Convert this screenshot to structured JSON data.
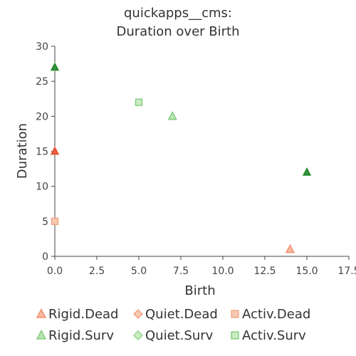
{
  "chart_data": {
    "type": "scatter",
    "title": [
      "quickapps__cms:",
      "Duration over Birth"
    ],
    "xlabel": "Birth",
    "ylabel": "Duration",
    "xlim": [
      0,
      17.5
    ],
    "ylim": [
      0,
      30
    ],
    "xticks": [
      "0.0",
      "2.5",
      "5.0",
      "7.5",
      "10.0",
      "12.5",
      "15.0",
      "17.5"
    ],
    "yticks": [
      "0",
      "5",
      "10",
      "15",
      "20",
      "25",
      "30"
    ],
    "grid": false,
    "legend_position": "bottom",
    "series": [
      {
        "name": "Rigid.Dead",
        "marker": "triangle",
        "fill": "#f8b8a0",
        "stroke": "#f08c6c",
        "points": [
          [
            0,
            15
          ],
          [
            14,
            1
          ]
        ]
      },
      {
        "name": "Quiet.Dead",
        "marker": "diamond",
        "fill": "#f8c8b0",
        "stroke": "#f0a080",
        "points": []
      },
      {
        "name": "Activ.Dead",
        "marker": "square",
        "fill": "#f8c8b0",
        "stroke": "#f0a080",
        "points": [
          [
            0,
            5
          ]
        ]
      },
      {
        "name": "Rigid.Surv",
        "marker": "triangle",
        "fill": "#b8e6b0",
        "stroke": "#7cc878",
        "points": [
          [
            0,
            27
          ],
          [
            7,
            20
          ],
          [
            15,
            12
          ]
        ]
      },
      {
        "name": "Quiet.Surv",
        "marker": "diamond",
        "fill": "#c8ecc0",
        "stroke": "#90d088",
        "points": []
      },
      {
        "name": "Activ.Surv",
        "marker": "square",
        "fill": "#c8ecc0",
        "stroke": "#7cc878",
        "points": [
          [
            5,
            22
          ]
        ]
      }
    ],
    "overlay_points": [
      {
        "x": 0,
        "y": 27,
        "fill": "#2e9a3a",
        "stroke": "#1f7a2a"
      },
      {
        "x": 15,
        "y": 12,
        "fill": "#2e9a3a",
        "stroke": "#1f7a2a"
      },
      {
        "x": 0,
        "y": 15,
        "fill": "#f06040",
        "stroke": "#e04a2a"
      }
    ]
  }
}
